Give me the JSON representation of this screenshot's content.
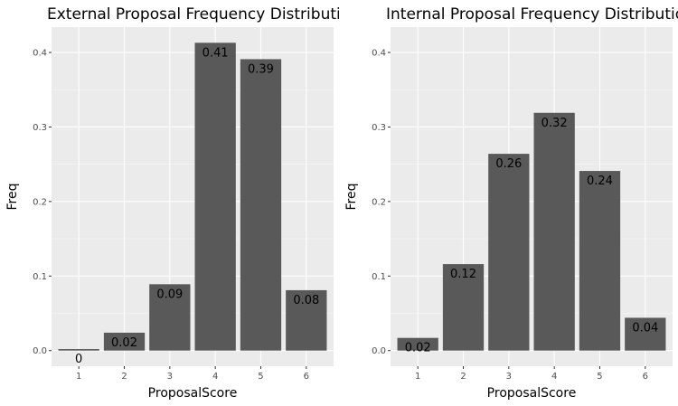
{
  "chart_data": [
    {
      "type": "bar",
      "title": "External Proposal Frequency Distribution",
      "xlabel": "ProposalScore",
      "ylabel": "Freq",
      "categories": [
        "1",
        "2",
        "3",
        "4",
        "5",
        "6"
      ],
      "values": [
        0.002,
        0.024,
        0.089,
        0.413,
        0.391,
        0.081
      ],
      "value_labels": [
        "0",
        "0.02",
        "0.09",
        "0.41",
        "0.39",
        "0.08"
      ],
      "ylim": [
        -0.021,
        0.434
      ],
      "yticks": [
        0.0,
        0.1,
        0.2,
        0.3,
        0.4
      ],
      "ytick_labels": [
        "0.0",
        "0.1",
        "0.2",
        "0.3",
        "0.4"
      ],
      "grid": true,
      "bar_color": "#595959",
      "panel_bg": "#ebebeb"
    },
    {
      "type": "bar",
      "title": "Internal Proposal Frequency Distribution",
      "xlabel": "ProposalScore",
      "ylabel": "Freq",
      "categories": [
        "1",
        "2",
        "3",
        "4",
        "5",
        "6"
      ],
      "values": [
        0.017,
        0.116,
        0.264,
        0.319,
        0.241,
        0.044
      ],
      "value_labels": [
        "0.02",
        "0.12",
        "0.26",
        "0.32",
        "0.24",
        "0.04"
      ],
      "ylim": [
        -0.021,
        0.434
      ],
      "yticks": [
        0.0,
        0.1,
        0.2,
        0.3,
        0.4
      ],
      "ytick_labels": [
        "0.0",
        "0.1",
        "0.2",
        "0.3",
        "0.4"
      ],
      "grid": true,
      "bar_color": "#595959",
      "panel_bg": "#ebebeb"
    }
  ]
}
